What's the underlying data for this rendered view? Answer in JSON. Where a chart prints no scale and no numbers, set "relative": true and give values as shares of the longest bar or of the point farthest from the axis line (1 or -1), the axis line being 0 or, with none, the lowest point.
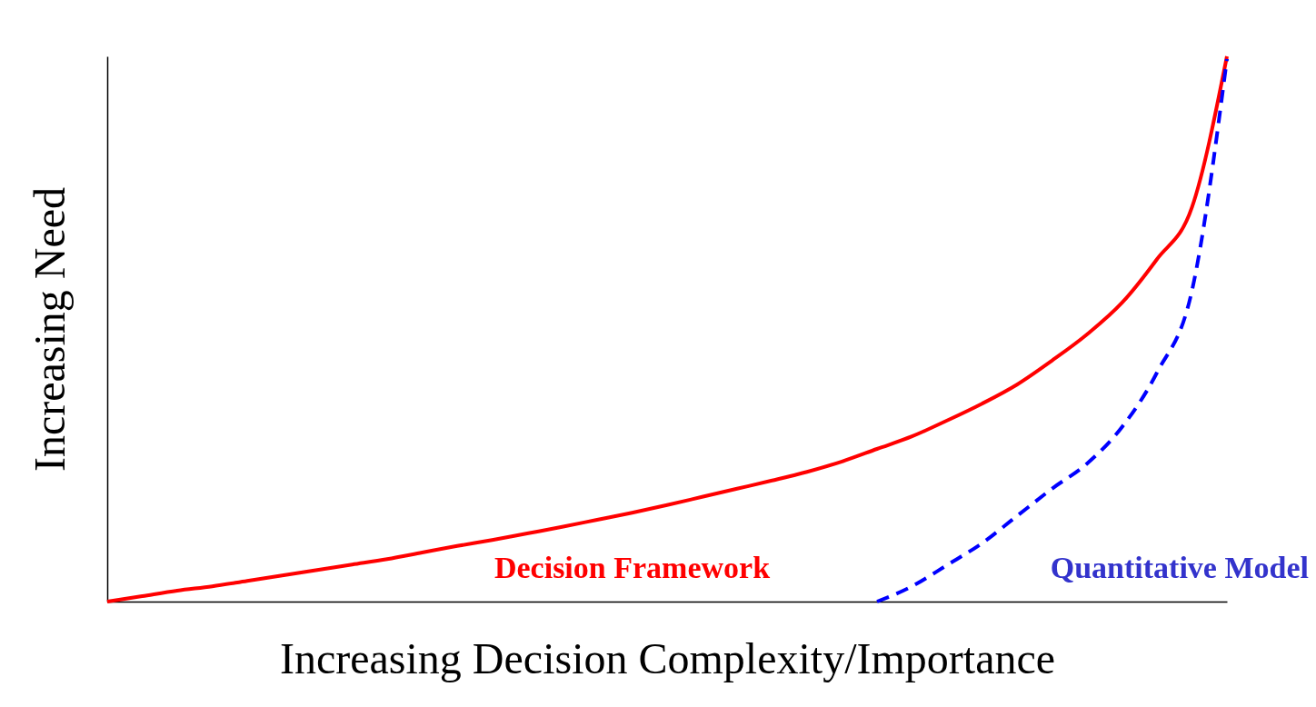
{
  "chart_data": {
    "type": "line",
    "relative": true,
    "xlabel": "Increasing Decision Complexity/Importance",
    "ylabel": "Increasing Need",
    "grid": false,
    "legend": false,
    "categories": [
      null,
      null,
      null,
      null,
      null,
      null,
      null,
      null,
      null,
      null,
      null,
      null,
      null,
      null,
      null,
      null,
      null,
      null,
      null,
      null,
      null,
      null,
      null,
      null,
      null,
      null,
      null,
      null,
      null,
      null,
      null,
      null,
      null
    ],
    "series": [
      {
        "name": "Decision Framework",
        "color": "#ff0000",
        "line_style": "solid",
        "values": [
          0,
          0.01,
          0.02,
          0.028,
          0.038,
          0.048,
          0.058,
          0.068,
          0.078,
          0.09,
          0.102,
          0.113,
          0.125,
          0.137,
          0.15,
          0.163,
          0.177,
          0.192,
          0.207,
          0.222,
          0.238,
          0.257,
          0.28,
          0.303,
          0.332,
          0.363,
          0.398,
          0.442,
          0.49,
          0.548,
          0.628,
          0.723,
          1.0
        ]
      },
      {
        "name": "Quantitative Model",
        "color": "#0000ff",
        "line_style": "dashed",
        "values": [
          null,
          null,
          null,
          null,
          null,
          null,
          null,
          null,
          null,
          null,
          null,
          null,
          null,
          null,
          null,
          null,
          null,
          null,
          null,
          null,
          null,
          null,
          0,
          0.028,
          0.067,
          0.107,
          0.157,
          0.207,
          0.253,
          0.32,
          0.42,
          0.57,
          0.995
        ]
      }
    ]
  }
}
